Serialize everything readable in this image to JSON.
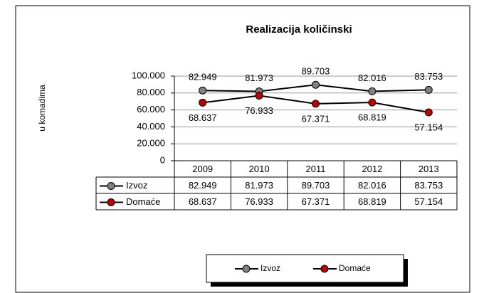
{
  "chart_data": {
    "type": "line",
    "title": "Realizacija  količinski",
    "y_label": "u komadima",
    "categories": [
      "2009",
      "2010",
      "2011",
      "2012",
      "2013"
    ],
    "series": [
      {
        "name": "Izvoz",
        "color": "#808080",
        "values": [
          82949,
          81973,
          89703,
          82016,
          83753
        ],
        "value_labels": [
          "82.949",
          "81.973",
          "89.703",
          "82.016",
          "83.753"
        ]
      },
      {
        "name": "Domaće",
        "color": "#c00000",
        "values": [
          68637,
          76933,
          67371,
          68819,
          57154
        ],
        "value_labels": [
          "68.637",
          "76.933",
          "67.371",
          "68.819",
          "57.154"
        ]
      }
    ],
    "line_color": "#000000",
    "ylim": [
      0,
      100000
    ],
    "yticks": [
      0,
      {
        "value": 20000,
        "label": "20.000"
      },
      {
        "value": 40000,
        "label": "40.000"
      },
      {
        "value": 60000,
        "label": "60.000"
      },
      {
        "value": 80000,
        "label": "80.000"
      },
      {
        "value": 100000,
        "label": "100.000"
      }
    ],
    "grid": true,
    "legend": "bottom",
    "data_table": true
  }
}
